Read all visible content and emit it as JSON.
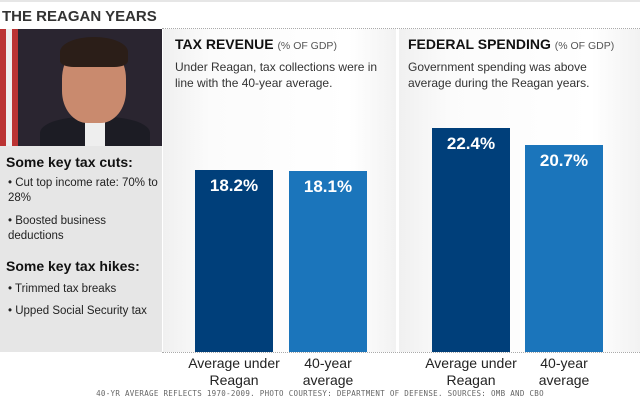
{
  "title": "THE REAGAN YEARS",
  "sidebar": {
    "cuts_heading": "Some key tax cuts:",
    "cuts": [
      "Cut top income rate: 70% to 28%",
      "Boosted business deductions"
    ],
    "hikes_heading": "Some key tax hikes:",
    "hikes": [
      "Trimmed tax breaks",
      "Upped Social Security tax"
    ]
  },
  "colors": {
    "reagan": "#003f7a",
    "average": "#1b75bb"
  },
  "chart_data": [
    {
      "type": "bar",
      "title": "TAX REVENUE",
      "unit": "(% OF GDP)",
      "description": "Under Reagan, tax collections were in line with the 40-year average.",
      "categories": [
        "Average under Reagan",
        "40-year average"
      ],
      "values": [
        18.2,
        18.1
      ],
      "labels": [
        "18.2%",
        "18.1%"
      ]
    },
    {
      "type": "bar",
      "title": "FEDERAL SPENDING",
      "unit": "(% OF GDP)",
      "description": "Government spending was above average during the Reagan years.",
      "categories": [
        "Average under Reagan",
        "40-year average"
      ],
      "values": [
        22.4,
        20.7
      ],
      "labels": [
        "22.4%",
        "20.7%"
      ]
    }
  ],
  "footer": "40-YR AVERAGE REFLECTS 1970-2009. PHOTO COURTESY: DEPARTMENT OF DEFENSE. SOURCES: OMB AND CBO"
}
